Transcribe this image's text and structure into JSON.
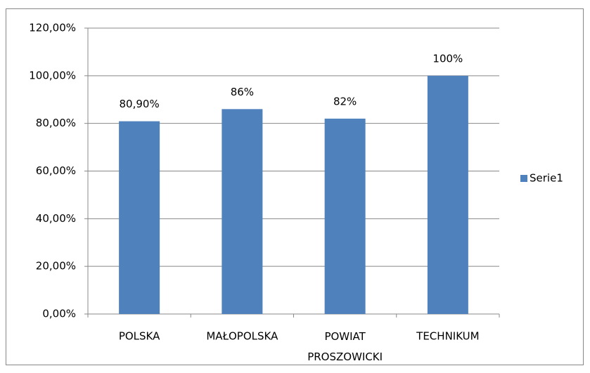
{
  "chart_data": {
    "type": "bar",
    "categories": [
      "POLSKA",
      "MAŁOPOLSKA",
      "POWIAT PROSZOWICKI",
      "TECHNIKUM"
    ],
    "series": [
      {
        "name": "Serie1",
        "color": "#4f81bd",
        "values": [
          80.9,
          86,
          82,
          100
        ],
        "value_labels": [
          "80,90%",
          "86%",
          "82%",
          "100%"
        ]
      }
    ],
    "ylim": [
      0,
      120
    ],
    "yticks": [
      {
        "value": 0,
        "label": "0,00%"
      },
      {
        "value": 20,
        "label": "20,00%"
      },
      {
        "value": 40,
        "label": "40,00%"
      },
      {
        "value": 60,
        "label": "60,00%"
      },
      {
        "value": 80,
        "label": "80,00%"
      },
      {
        "value": 100,
        "label": "100,00%"
      },
      {
        "value": 120,
        "label": "120,00%"
      }
    ],
    "grid": true,
    "legend": "right"
  }
}
